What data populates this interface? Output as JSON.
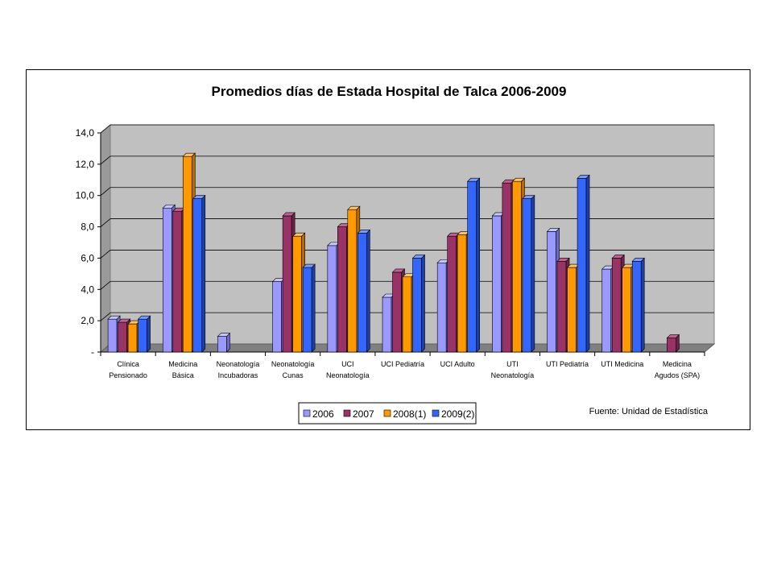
{
  "chart_data": {
    "type": "bar",
    "title": "Promedios días de Estada Hospital de Talca 2006-2009",
    "source": "Fuente: Unidad de Estadística",
    "ylim": [
      0,
      14
    ],
    "yticks": [
      "-",
      "2,0",
      "4,0",
      "6,0",
      "8,0",
      "10,0",
      "12,0",
      "14,0"
    ],
    "grid": true,
    "legend_position": "bottom",
    "categories": [
      [
        "Clínica",
        "Pensionado"
      ],
      [
        "Medicina",
        "Básica"
      ],
      [
        "Neonatología",
        "Incubadoras"
      ],
      [
        "Neonatología",
        "Cunas"
      ],
      [
        "UCI",
        "Neonatología"
      ],
      [
        "UCI Pediatría"
      ],
      [
        "UCI Adulto"
      ],
      [
        "UTI",
        "Neonatología"
      ],
      [
        "UTI Pediatría"
      ],
      [
        "UTI Medicina"
      ],
      [
        "Medicina",
        "Agudos (SPA)"
      ]
    ],
    "series": [
      {
        "name": "2006",
        "color": "#9999ff",
        "side": "#6b6bc8",
        "top": "#c4c4ff",
        "values": [
          2.1,
          9.2,
          1.0,
          4.5,
          6.8,
          3.5,
          5.7,
          8.7,
          7.7,
          5.3,
          null
        ]
      },
      {
        "name": "2007",
        "color": "#993366",
        "side": "#6b2447",
        "top": "#c0628f",
        "values": [
          1.9,
          9.0,
          null,
          8.7,
          8.0,
          5.1,
          7.4,
          10.8,
          5.8,
          6.0,
          0.9
        ]
      },
      {
        "name": "2008(1)",
        "color": "#ff9900",
        "side": "#b56c00",
        "top": "#ffc266",
        "values": [
          1.8,
          12.5,
          null,
          7.4,
          9.1,
          4.8,
          7.5,
          10.9,
          5.4,
          5.4,
          null
        ]
      },
      {
        "name": "2009(2)",
        "color": "#3366ff",
        "side": "#1f3fa8",
        "top": "#7a9bff",
        "values": [
          2.1,
          9.8,
          null,
          5.4,
          7.6,
          6.0,
          10.9,
          9.8,
          11.1,
          5.8,
          null
        ]
      }
    ]
  }
}
